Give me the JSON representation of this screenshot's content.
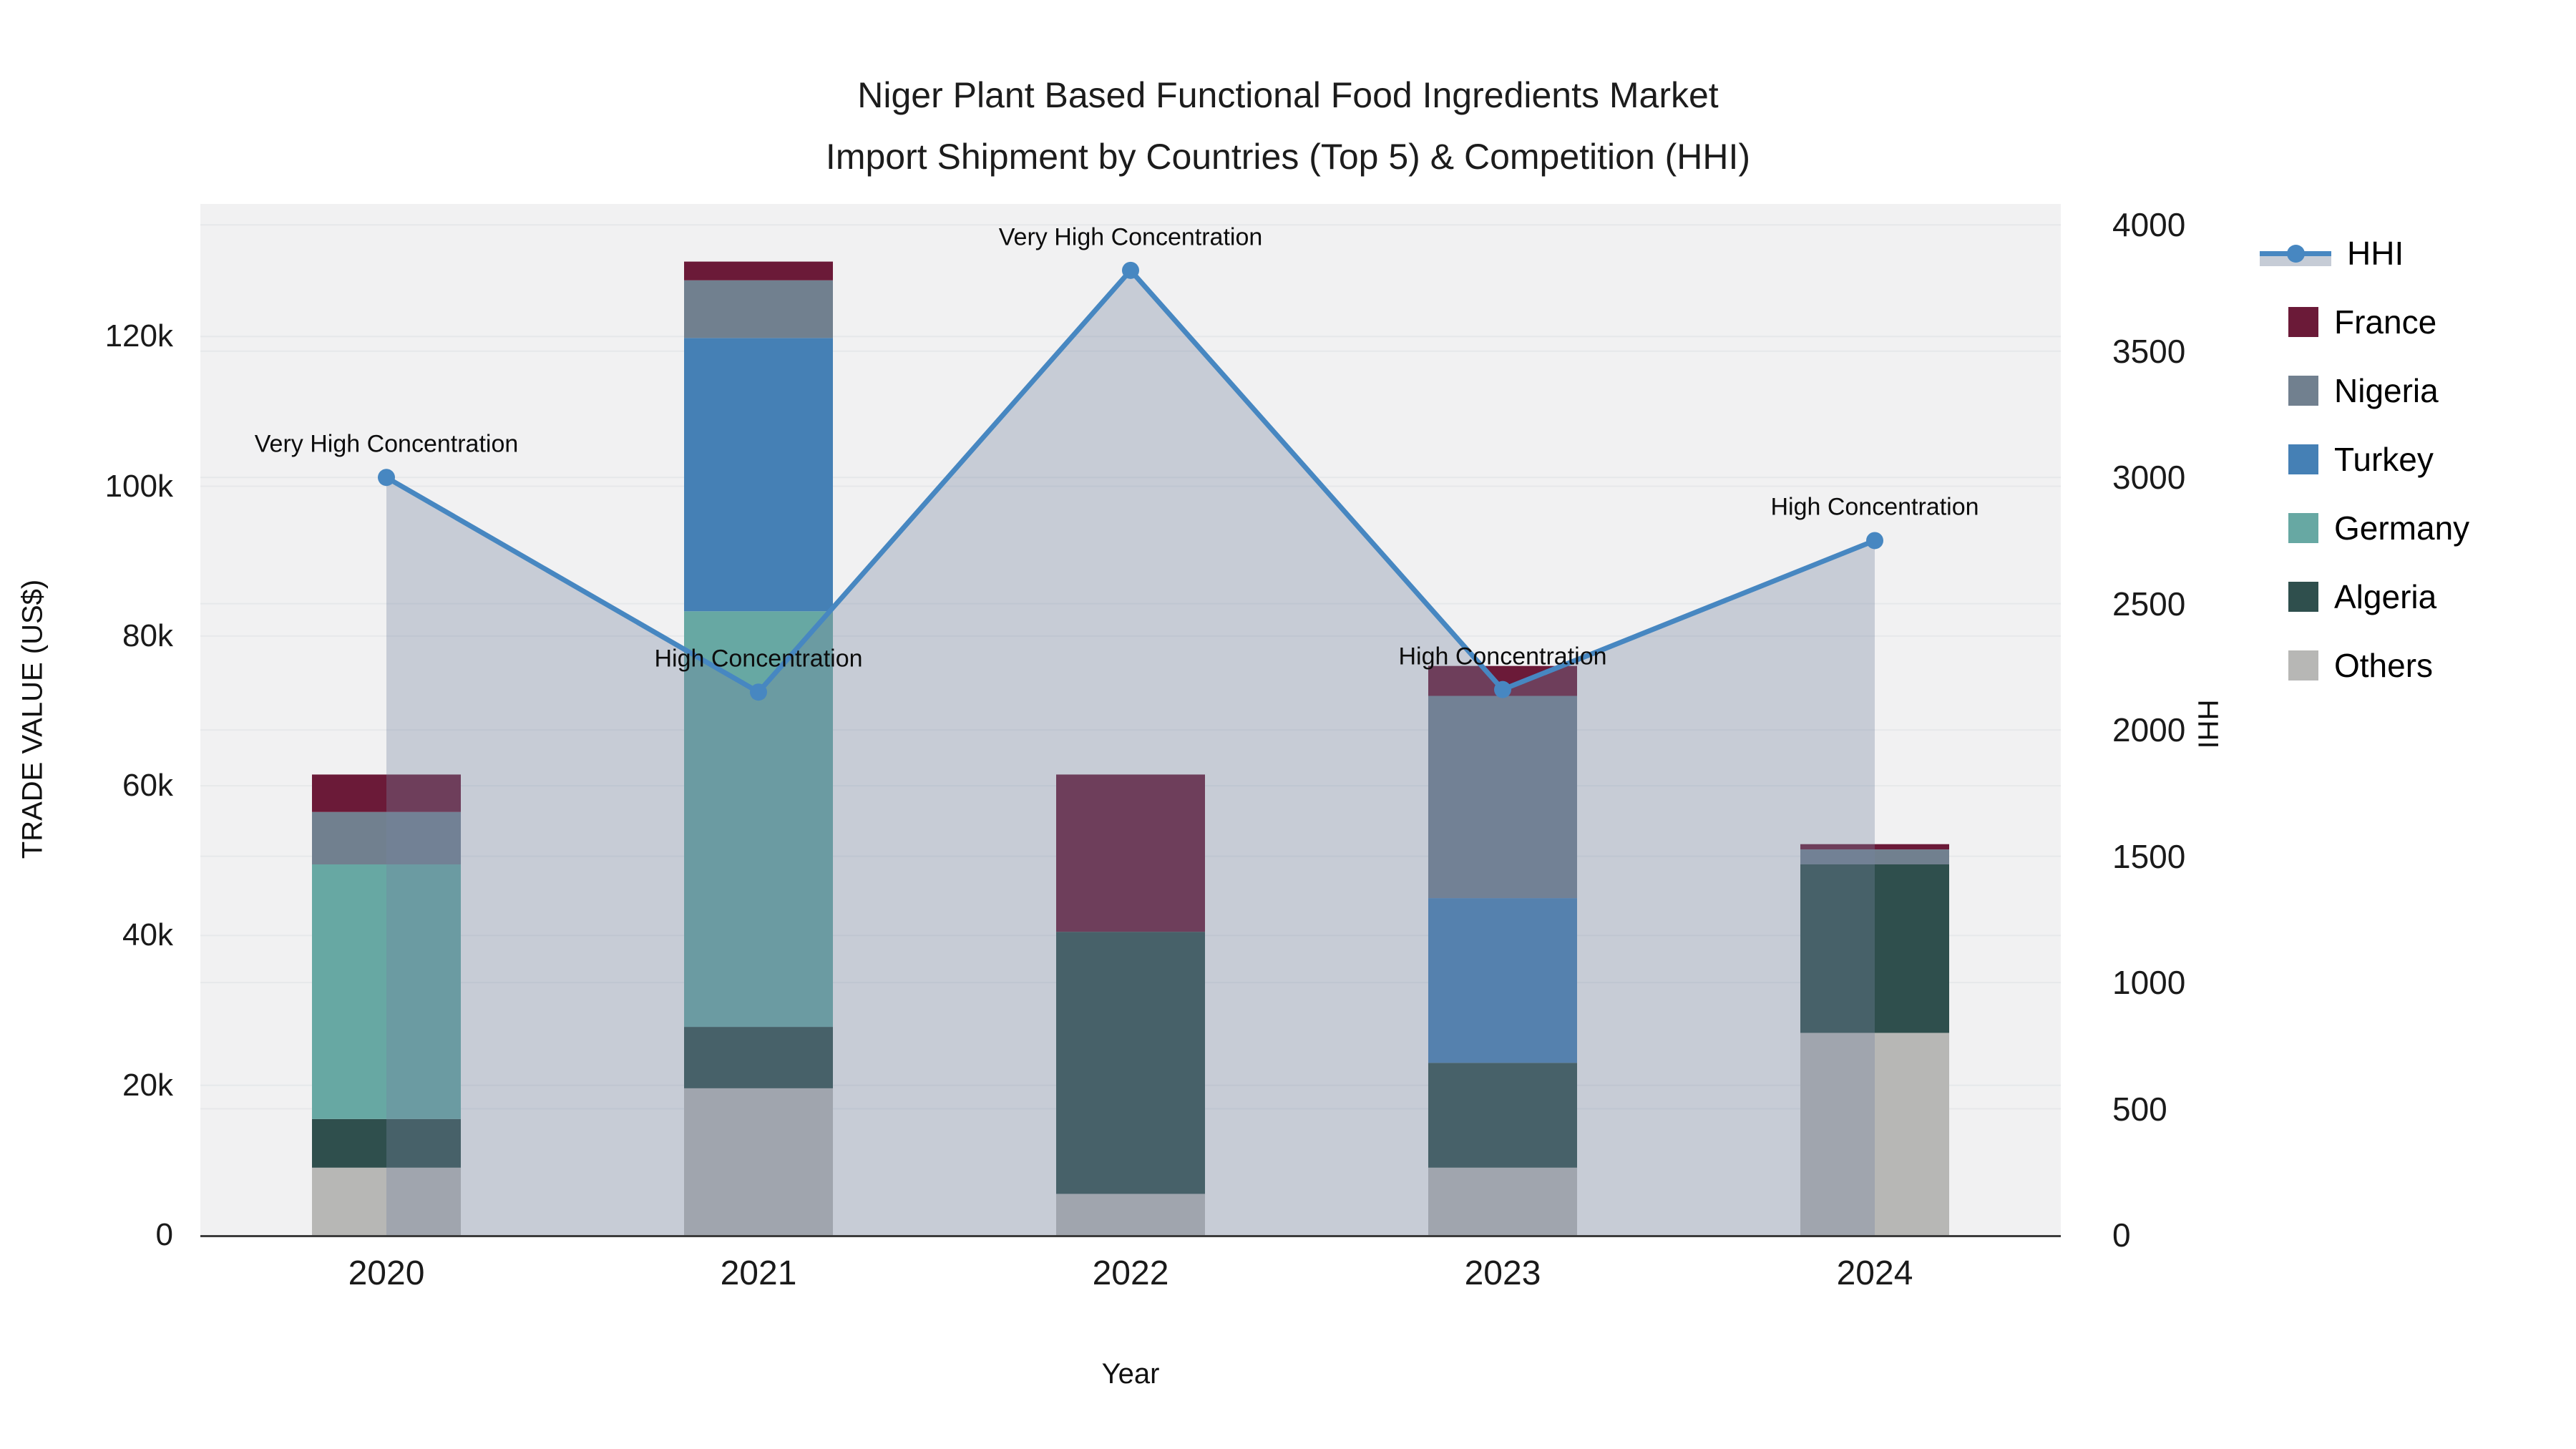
{
  "title": {
    "line1": "Niger Plant Based Functional Food Ingredients Market",
    "line2": "Import Shipment by Countries (Top 5) & Competition (HHI)"
  },
  "axes": {
    "x": {
      "title": "Year"
    },
    "y_left": {
      "title": "TRADE VALUE (US$)",
      "tick_labels": [
        "0",
        "20k",
        "40k",
        "60k",
        "80k",
        "100k",
        "120k"
      ],
      "tick_values": [
        0,
        20000,
        40000,
        60000,
        80000,
        100000,
        120000
      ]
    },
    "y_right": {
      "title": "HHI",
      "tick_labels": [
        "0",
        "500",
        "1000",
        "1500",
        "2000",
        "2500",
        "3000",
        "3500",
        "4000"
      ],
      "tick_values": [
        0,
        500,
        1000,
        1500,
        2000,
        2500,
        3000,
        3500,
        4000
      ]
    }
  },
  "legend": {
    "items": [
      {
        "label": "HHI",
        "type": "line",
        "color": "#4787C1"
      },
      {
        "label": "France",
        "type": "swatch",
        "color": "#6B1A38"
      },
      {
        "label": "Nigeria",
        "type": "swatch",
        "color": "#71808F"
      },
      {
        "label": "Turkey",
        "type": "swatch",
        "color": "#4580B5"
      },
      {
        "label": "Germany",
        "type": "swatch",
        "color": "#67A8A3"
      },
      {
        "label": "Algeria",
        "type": "swatch",
        "color": "#2F4F4D"
      },
      {
        "label": "Others",
        "type": "swatch",
        "color": "#B7B7B5"
      }
    ]
  },
  "chart_data": {
    "type": "bar",
    "subtype": "stacked bars (left axis) + line with markers and area fill (right axis)",
    "categories": [
      "2020",
      "2021",
      "2022",
      "2023",
      "2024"
    ],
    "series": [
      {
        "name": "Others",
        "axis": "left",
        "color": "#B7B7B5",
        "values": [
          9000,
          19600,
          5500,
          9000,
          27000
        ]
      },
      {
        "name": "Algeria",
        "axis": "left",
        "color": "#2F4F4D",
        "values": [
          6500,
          8200,
          35000,
          14000,
          22500
        ]
      },
      {
        "name": "Germany",
        "axis": "left",
        "color": "#67A8A3",
        "values": [
          34000,
          55500,
          0,
          0,
          0
        ]
      },
      {
        "name": "Turkey",
        "axis": "left",
        "color": "#4580B5",
        "values": [
          0,
          36500,
          0,
          22000,
          0
        ]
      },
      {
        "name": "Nigeria",
        "axis": "left",
        "color": "#71808F",
        "values": [
          7000,
          7700,
          0,
          27000,
          2000
        ]
      },
      {
        "name": "France",
        "axis": "left",
        "color": "#6B1A38",
        "values": [
          5000,
          2500,
          21000,
          4000,
          700
        ]
      }
    ],
    "bar_totals": [
      61500,
      129500,
      61500,
      76000,
      52200
    ],
    "line_series": {
      "name": "HHI",
      "axis": "right",
      "color": "#4787C1",
      "area_fill": "rgba(116,132,160,0.34)",
      "values": [
        3000,
        2150,
        3820,
        2160,
        2750
      ]
    },
    "annotations": [
      {
        "category": "2020",
        "text": "Very High Concentration"
      },
      {
        "category": "2021",
        "text": "High Concentration"
      },
      {
        "category": "2022",
        "text": "Very High Concentration"
      },
      {
        "category": "2023",
        "text": "High Concentration"
      },
      {
        "category": "2024",
        "text": "High Concentration"
      }
    ],
    "xlabel": "Year",
    "ylabel_left": "TRADE VALUE (US$)",
    "ylabel_right": "HHI",
    "ylim_left": [
      0,
      137700
    ],
    "ylim_right": [
      0,
      4083
    ],
    "grid": "horizontal gridlines for both axes, faint, on light gray plot background",
    "legend_position": "right"
  },
  "colors": {
    "plot_background": "#f1f1f2",
    "page_background": "#ffffff",
    "gridline": "#e6e8ea",
    "axis_line": "#3c3c3c",
    "hhi_line": "#4787C1",
    "area_fill": "rgba(116,132,160,0.34)"
  }
}
